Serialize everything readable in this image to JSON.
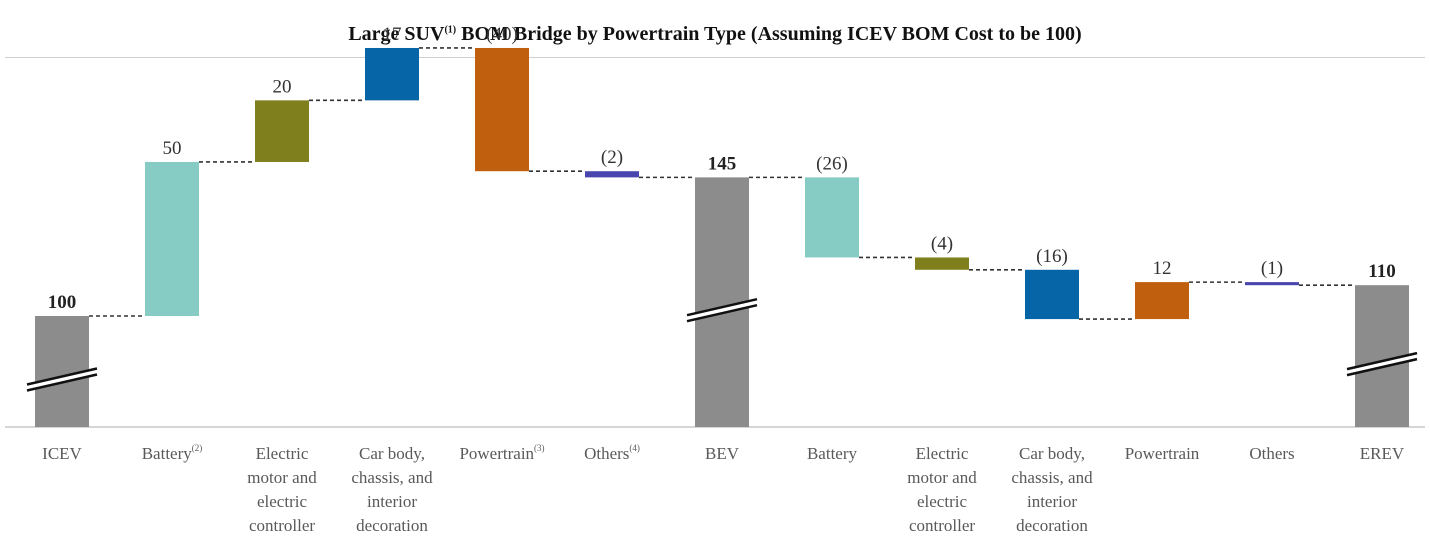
{
  "chart_data": {
    "type": "bar",
    "subtype": "waterfall",
    "title": {
      "pre": "Large SUV",
      "sup": "(1)",
      "post": " BOM Bridge by Powertrain Type (Assuming ICEV BOM Cost to be 100)"
    },
    "xlabel": "",
    "ylabel": "",
    "y_axis_broken": true,
    "grid": false,
    "legend": "none",
    "connectors": "dashed",
    "steps": [
      {
        "kind": "total",
        "lines": [
          "ICEV"
        ],
        "sup": "",
        "value": 100,
        "label": "100",
        "color": "#8c8c8c"
      },
      {
        "kind": "delta",
        "lines": [
          "Battery"
        ],
        "sup": "(2)",
        "value": 50,
        "label": "50",
        "color": "#86cbc4"
      },
      {
        "kind": "delta",
        "lines": [
          "Electric",
          "motor and",
          "electric",
          "controller"
        ],
        "sup": "",
        "value": 20,
        "label": "20",
        "color": "#7f7f1e"
      },
      {
        "kind": "delta",
        "lines": [
          "Car body,",
          "chassis, and",
          "interior",
          "decoration"
        ],
        "sup": "",
        "value": 17,
        "label": "17",
        "color": "#0565a6"
      },
      {
        "kind": "delta",
        "lines": [
          "Powertrain"
        ],
        "sup": "(3)",
        "value": -40,
        "label": "(40)",
        "color": "#c05f0d"
      },
      {
        "kind": "delta",
        "lines": [
          "Others"
        ],
        "sup": "(4)",
        "value": -2,
        "label": "(2)",
        "color": "#4a46b0"
      },
      {
        "kind": "total",
        "lines": [
          "BEV"
        ],
        "sup": "",
        "value": 145,
        "label": "145",
        "color": "#8c8c8c"
      },
      {
        "kind": "delta",
        "lines": [
          "Battery"
        ],
        "sup": "",
        "value": -26,
        "label": "(26)",
        "color": "#86cbc4"
      },
      {
        "kind": "delta",
        "lines": [
          "Electric",
          "motor and",
          "electric",
          "controller"
        ],
        "sup": "",
        "value": -4,
        "label": "(4)",
        "color": "#7f7f1e"
      },
      {
        "kind": "delta",
        "lines": [
          "Car body,",
          "chassis, and",
          "interior",
          "decoration"
        ],
        "sup": "",
        "value": -16,
        "label": "(16)",
        "color": "#0565a6"
      },
      {
        "kind": "delta",
        "lines": [
          "Powertrain"
        ],
        "sup": "",
        "value": 12,
        "label": "12",
        "color": "#c05f0d"
      },
      {
        "kind": "delta",
        "lines": [
          "Others"
        ],
        "sup": "",
        "value": -1,
        "label": "(1)",
        "color": "#4a46b0"
      },
      {
        "kind": "total",
        "lines": [
          "EREV"
        ],
        "sup": "",
        "value": 110,
        "label": "110",
        "color": "#8c8c8c"
      }
    ]
  }
}
